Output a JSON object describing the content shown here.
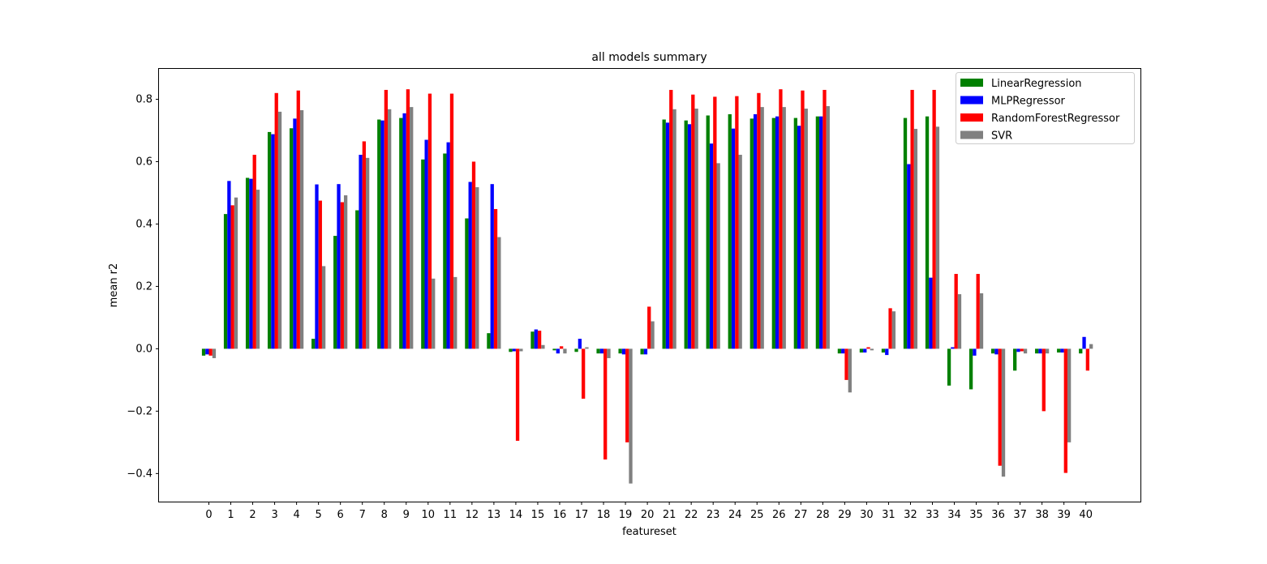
{
  "chart_data": {
    "type": "bar",
    "title": "all models summary",
    "xlabel": "featureset",
    "ylabel": "mean r2",
    "ylim": [
      -0.49,
      0.9
    ],
    "yticks": [
      -0.4,
      -0.2,
      0.0,
      0.2,
      0.4,
      0.6,
      0.8
    ],
    "ytick_labels": [
      "−0.4",
      "−0.2",
      "0.0",
      "0.2",
      "0.4",
      "0.6",
      "0.8"
    ],
    "categories": [
      "0",
      "1",
      "2",
      "3",
      "4",
      "5",
      "6",
      "7",
      "8",
      "9",
      "10",
      "11",
      "12",
      "13",
      "14",
      "15",
      "16",
      "17",
      "18",
      "19",
      "20",
      "21",
      "22",
      "23",
      "24",
      "25",
      "26",
      "27",
      "28",
      "29",
      "30",
      "31",
      "32",
      "33",
      "34",
      "35",
      "36",
      "37",
      "38",
      "39",
      "40"
    ],
    "grid": false,
    "legend": "top-right",
    "series": [
      {
        "name": "LinearRegression",
        "color": "#008000",
        "values": [
          -0.022,
          0.432,
          0.548,
          0.695,
          0.707,
          0.032,
          0.362,
          0.444,
          0.735,
          0.74,
          0.607,
          0.626,
          0.418,
          0.05,
          -0.01,
          0.055,
          -0.005,
          -0.01,
          -0.015,
          -0.015,
          -0.018,
          0.735,
          0.732,
          0.748,
          0.752,
          0.738,
          0.74,
          0.74,
          0.745,
          -0.015,
          -0.012,
          -0.012,
          0.74,
          0.745,
          -0.118,
          -0.13,
          -0.015,
          -0.07,
          -0.015,
          -0.012,
          -0.015
        ]
      },
      {
        "name": "MLPRegressor",
        "color": "#0000ff",
        "values": [
          -0.018,
          0.538,
          0.545,
          0.688,
          0.738,
          0.527,
          0.528,
          0.622,
          0.732,
          0.755,
          0.67,
          0.662,
          0.535,
          0.528,
          -0.008,
          0.062,
          -0.015,
          0.032,
          -0.015,
          -0.018,
          -0.018,
          0.725,
          0.72,
          0.658,
          0.706,
          0.752,
          0.745,
          0.715,
          0.745,
          -0.015,
          -0.012,
          -0.02,
          0.592,
          0.228,
          0.005,
          -0.022,
          -0.018,
          -0.01,
          -0.015,
          -0.012,
          0.038
        ]
      },
      {
        "name": "RandomForestRegressor",
        "color": "#ff0000",
        "values": [
          -0.022,
          0.46,
          0.622,
          0.82,
          0.828,
          0.475,
          0.47,
          0.665,
          0.83,
          0.832,
          0.818,
          0.818,
          0.6,
          0.448,
          -0.295,
          0.058,
          0.008,
          -0.16,
          -0.355,
          -0.3,
          0.135,
          0.83,
          0.815,
          0.808,
          0.81,
          0.82,
          0.832,
          0.828,
          0.83,
          -0.1,
          0.005,
          0.13,
          0.83,
          0.83,
          0.24,
          0.24,
          -0.375,
          -0.008,
          -0.2,
          -0.398,
          -0.07
        ]
      },
      {
        "name": "SVR",
        "color": "#808080",
        "values": [
          -0.03,
          0.485,
          0.51,
          0.76,
          0.765,
          0.265,
          0.492,
          0.612,
          0.768,
          0.775,
          0.225,
          0.23,
          0.518,
          0.358,
          -0.008,
          0.012,
          -0.015,
          0.005,
          -0.03,
          -0.432,
          0.088,
          0.768,
          0.77,
          0.595,
          0.622,
          0.775,
          0.775,
          0.77,
          0.778,
          -0.14,
          -0.005,
          0.12,
          0.705,
          0.712,
          0.175,
          0.178,
          -0.41,
          -0.015,
          -0.015,
          -0.3,
          0.015
        ]
      }
    ]
  }
}
